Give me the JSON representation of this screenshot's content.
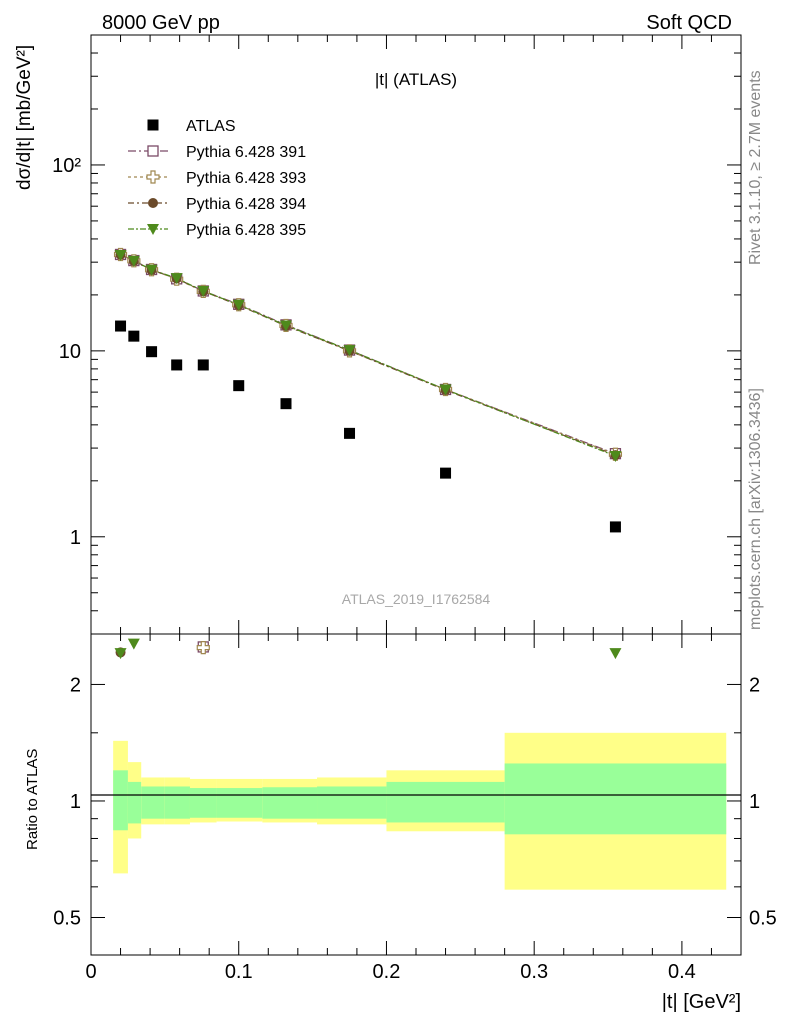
{
  "header": {
    "left": "8000 GeV pp",
    "right": "Soft QCD"
  },
  "side_labels": {
    "rivet": "Rivet 3.1.10, ≥ 2.7M events",
    "mcplots": "mcplots.cern.ch [arXiv:1306.3436]"
  },
  "chart_data": [
    {
      "type": "scatter",
      "title": "|t| (ATLAS)",
      "watermark": "ATLAS_2019_I1762584",
      "ylabel": "dσ/d|t| [mb/GeV²]",
      "y_scale": "log",
      "xlim": [
        0,
        0.44
      ],
      "ylim": [
        0.3,
        500
      ],
      "y_ticks": [
        "1",
        "10",
        "10²"
      ],
      "legend_position": "top-left",
      "series": [
        {
          "name": "ATLAS",
          "marker": "square-filled",
          "color": "#000000",
          "x": [
            0.02,
            0.029,
            0.041,
            0.058,
            0.076,
            0.1,
            0.132,
            0.175,
            0.24,
            0.355
          ],
          "y": [
            13.6,
            12.0,
            9.9,
            8.4,
            8.4,
            6.5,
            5.2,
            3.6,
            2.2,
            1.13
          ]
        },
        {
          "name": "Pythia 6.428 391",
          "marker": "square-open",
          "color": "#7b4a67",
          "x": [
            0.02,
            0.029,
            0.041,
            0.058,
            0.076,
            0.1,
            0.132,
            0.175,
            0.24,
            0.355
          ],
          "y": [
            33.0,
            30.6,
            27.4,
            24.4,
            21.0,
            17.8,
            13.8,
            10.1,
            6.2,
            2.8
          ]
        },
        {
          "name": "Pythia 6.428 393",
          "marker": "cross-open",
          "color": "#a08850",
          "x": [
            0.02,
            0.029,
            0.041,
            0.058,
            0.076,
            0.1,
            0.132,
            0.175,
            0.24,
            0.355
          ],
          "y": [
            33.0,
            30.5,
            27.3,
            24.3,
            20.9,
            17.7,
            13.7,
            10.0,
            6.2,
            2.78
          ]
        },
        {
          "name": "Pythia 6.428 394",
          "marker": "circle-filled",
          "color": "#6b4a2a",
          "x": [
            0.02,
            0.029,
            0.041,
            0.058,
            0.076,
            0.1,
            0.132,
            0.175,
            0.24,
            0.355
          ],
          "y": [
            32.9,
            30.4,
            27.2,
            24.5,
            20.9,
            17.6,
            13.6,
            10.0,
            6.15,
            2.75
          ]
        },
        {
          "name": "Pythia 6.428 395",
          "marker": "triangle-down-filled",
          "color": "#4e8a1c",
          "x": [
            0.02,
            0.029,
            0.041,
            0.058,
            0.076,
            0.1,
            0.132,
            0.175,
            0.24,
            0.355
          ],
          "y": [
            32.8,
            30.5,
            27.3,
            24.6,
            21.0,
            17.7,
            13.7,
            10.1,
            6.2,
            2.72
          ]
        }
      ]
    },
    {
      "type": "scatter",
      "ylabel": "Ratio to ATLAS",
      "xlabel": "|t| [GeV²]",
      "y_scale": "log",
      "xlim": [
        0,
        0.44
      ],
      "ylim": [
        0.4,
        2.7
      ],
      "x_ticks": [
        "0",
        "0.1",
        "0.2",
        "0.3",
        "0.4"
      ],
      "y_ticks": [
        "0.5",
        "1",
        "2"
      ],
      "uncertainty_bands": {
        "bin_edges": [
          0.015,
          0.025,
          0.034,
          0.05,
          0.067,
          0.085,
          0.116,
          0.153,
          0.2,
          0.28,
          0.43
        ],
        "stat_lo": [
          0.84,
          0.875,
          0.9,
          0.9,
          0.905,
          0.905,
          0.9,
          0.9,
          0.88,
          0.82
        ],
        "stat_hi": [
          1.2,
          1.12,
          1.09,
          1.09,
          1.08,
          1.08,
          1.085,
          1.09,
          1.12,
          1.25
        ],
        "total_lo": [
          0.65,
          0.8,
          0.87,
          0.87,
          0.88,
          0.885,
          0.88,
          0.87,
          0.835,
          0.59
        ],
        "total_hi": [
          1.43,
          1.26,
          1.15,
          1.15,
          1.14,
          1.14,
          1.14,
          1.15,
          1.2,
          1.5
        ],
        "stat_color": "#99ff99",
        "total_color": "#ffff88"
      },
      "ratio_points": [
        {
          "series": "Pythia 6.428 391",
          "x": [
            0.076
          ],
          "y": [
            2.5
          ]
        },
        {
          "series": "Pythia 6.428 393",
          "x": [
            0.076
          ],
          "y": [
            2.49
          ]
        },
        {
          "series": "Pythia 6.428 394",
          "x": [
            0.02
          ],
          "y": [
            2.42
          ]
        },
        {
          "series": "Pythia 6.428 395",
          "x": [
            0.02,
            0.029,
            0.355
          ],
          "y": [
            2.41,
            2.55,
            2.41
          ]
        }
      ]
    }
  ]
}
